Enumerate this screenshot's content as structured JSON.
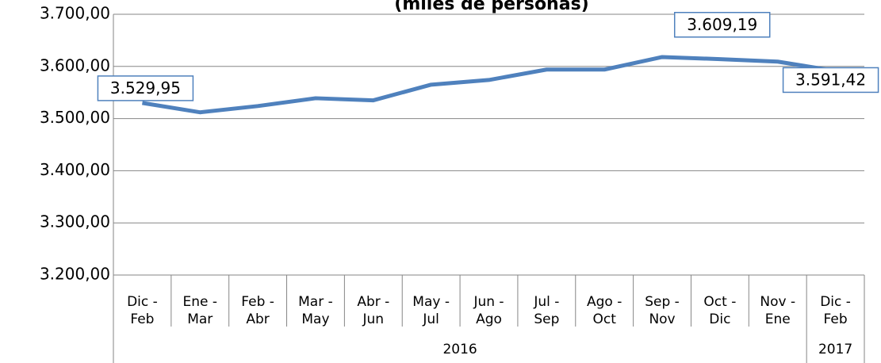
{
  "chart_data": {
    "type": "line",
    "title": "(miles de personas)",
    "categories": [
      [
        "Dic -",
        "Feb"
      ],
      [
        "Ene -",
        "Mar"
      ],
      [
        "Feb -",
        "Abr"
      ],
      [
        "Mar -",
        "May"
      ],
      [
        "Abr -",
        "Jun"
      ],
      [
        "May -",
        "Jul"
      ],
      [
        "Jun -",
        "Ago"
      ],
      [
        "Jul -",
        "Sep"
      ],
      [
        "Ago -",
        "Oct"
      ],
      [
        "Sep -",
        "Nov"
      ],
      [
        "Oct -",
        "Dic"
      ],
      [
        "Nov -",
        "Ene"
      ],
      [
        "Dic -",
        "Feb"
      ]
    ],
    "groups": [
      "2016",
      "2016",
      "2016",
      "2016",
      "2016",
      "2016",
      "2016",
      "2016",
      "2016",
      "2016",
      "2016",
      "2016",
      "2017"
    ],
    "series": [
      {
        "color": "#4f81bd",
        "values": [
          3529.95,
          3512,
          3524,
          3539,
          3535,
          3565,
          3574,
          3594,
          3594,
          3618,
          3614,
          3609.19,
          3591.42
        ],
        "value_labels": [
          "3.529,95",
          null,
          null,
          null,
          null,
          null,
          null,
          null,
          null,
          null,
          null,
          "3.609,19",
          "3.591,42"
        ]
      }
    ],
    "ylim": [
      3200,
      3700
    ],
    "yticks": [
      {
        "value": 3200,
        "label": "3.200,00"
      },
      {
        "value": 3300,
        "label": "3.300,00"
      },
      {
        "value": 3400,
        "label": "3.400,00"
      },
      {
        "value": 3500,
        "label": "3.500,00"
      },
      {
        "value": 3600,
        "label": "3.600,00"
      },
      {
        "value": 3700,
        "label": "3.700,00"
      }
    ],
    "grid": true
  }
}
